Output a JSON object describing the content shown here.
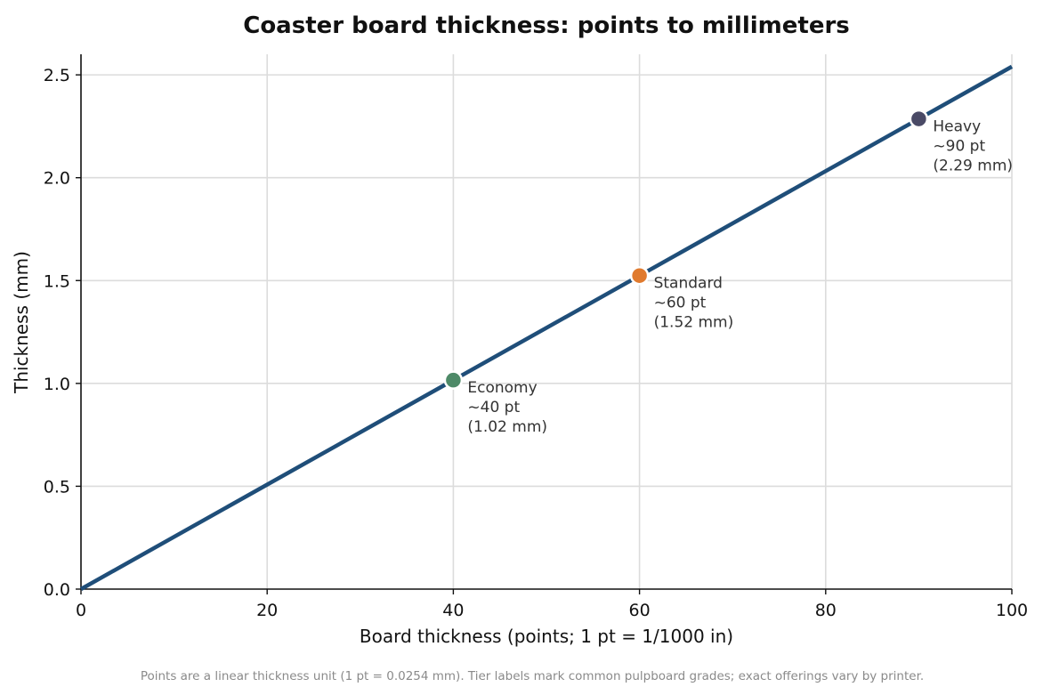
{
  "chart_data": {
    "type": "line",
    "title": "Coaster board thickness: points to millimeters",
    "xlabel": "Board thickness (points; 1 pt = 1/1000 in)",
    "ylabel": "Thickness (mm)",
    "xlim": [
      0,
      100
    ],
    "ylim": [
      0,
      2.6
    ],
    "x_ticks": [
      0,
      20,
      40,
      60,
      80,
      100
    ],
    "x_tick_labels": [
      "0",
      "20",
      "40",
      "60",
      "80",
      "100"
    ],
    "y_ticks": [
      0,
      0.5,
      1.0,
      1.5,
      2.0,
      2.5
    ],
    "y_tick_labels": [
      "0.0",
      "0.5",
      "1.0",
      "1.5",
      "2.0",
      "2.5"
    ],
    "grid": true,
    "series": [
      {
        "color": "#1f4e79",
        "x": [
          0,
          100
        ],
        "y": [
          0,
          2.54
        ]
      }
    ],
    "points": [
      {
        "x": 40,
        "y": 1.016,
        "color": "#4e8a68",
        "label_lines": [
          "Economy",
          "~40 pt",
          "(1.02 mm)"
        ]
      },
      {
        "x": 60,
        "y": 1.524,
        "color": "#e07a2e",
        "label_lines": [
          "Standard",
          "~60 pt",
          "(1.52 mm)"
        ]
      },
      {
        "x": 90,
        "y": 2.286,
        "color": "#4a4a66",
        "label_lines": [
          "Heavy",
          "~90 pt",
          "(2.29 mm)"
        ]
      }
    ]
  },
  "footnote": "Points are a linear thickness unit (1 pt = 0.0254 mm). Tier labels mark common pulpboard grades; exact offerings vary by printer."
}
